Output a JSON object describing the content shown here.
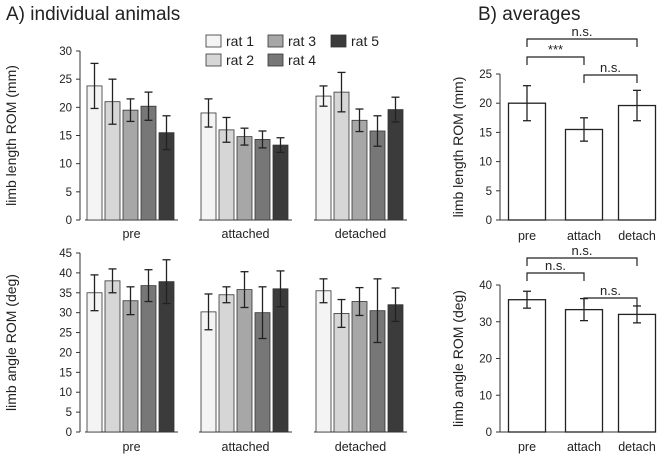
{
  "panels": {
    "left_title": "A)  individual animals",
    "right_title": "B)  averages"
  },
  "legend": {
    "items": [
      {
        "label": "rat 1",
        "color": "#f4f4f4"
      },
      {
        "label": "rat 2",
        "color": "#d6d6d6"
      },
      {
        "label": "rat 3",
        "color": "#a7a7a7"
      },
      {
        "label": "rat 4",
        "color": "#777777"
      },
      {
        "label": "rat 5",
        "color": "#3b3b3b"
      }
    ]
  },
  "chart_data": [
    {
      "id": "A-length",
      "type": "bar",
      "title": "",
      "ylabel": "limb length ROM (mm)",
      "ylim": [
        0,
        30
      ],
      "yticks": [
        0,
        5,
        10,
        15,
        20,
        25,
        30
      ],
      "categories": [
        "pre",
        "attached",
        "detached"
      ],
      "series": [
        {
          "name": "rat 1",
          "values": [
            23.8,
            19.0,
            22.0
          ],
          "errors": [
            4.0,
            2.5,
            1.8
          ]
        },
        {
          "name": "rat 2",
          "values": [
            21.0,
            16.0,
            22.7
          ],
          "errors": [
            4.0,
            2.2,
            3.5
          ]
        },
        {
          "name": "rat 3",
          "values": [
            19.5,
            14.8,
            17.7
          ],
          "errors": [
            2.0,
            1.5,
            2.0
          ]
        },
        {
          "name": "rat 4",
          "values": [
            20.2,
            14.3,
            15.8
          ],
          "errors": [
            2.5,
            1.5,
            2.7
          ]
        },
        {
          "name": "rat 5",
          "values": [
            15.5,
            13.3,
            19.6
          ],
          "errors": [
            3.0,
            1.3,
            2.2
          ]
        }
      ]
    },
    {
      "id": "A-angle",
      "type": "bar",
      "title": "",
      "ylabel": "limb angle ROM (deg)",
      "ylim": [
        0,
        45
      ],
      "yticks": [
        0,
        5,
        10,
        15,
        20,
        25,
        30,
        35,
        40,
        45
      ],
      "categories": [
        "pre",
        "attached",
        "detached"
      ],
      "series": [
        {
          "name": "rat 1",
          "values": [
            35.0,
            30.2,
            35.5
          ],
          "errors": [
            4.5,
            4.5,
            3.0
          ]
        },
        {
          "name": "rat 2",
          "values": [
            38.0,
            34.5,
            29.8
          ],
          "errors": [
            3.0,
            2.0,
            3.5
          ]
        },
        {
          "name": "rat 3",
          "values": [
            33.0,
            35.8,
            32.8
          ],
          "errors": [
            3.5,
            4.5,
            3.5
          ]
        },
        {
          "name": "rat 4",
          "values": [
            36.8,
            30.0,
            30.5
          ],
          "errors": [
            4.0,
            6.5,
            8.0
          ]
        },
        {
          "name": "rat 5",
          "values": [
            37.8,
            36.0,
            32.0
          ],
          "errors": [
            5.5,
            4.5,
            4.2
          ]
        }
      ]
    },
    {
      "id": "B-length",
      "type": "bar",
      "title": "",
      "ylabel": "limb length ROM (mm)",
      "ylim": [
        0,
        25
      ],
      "yticks": [
        0,
        5,
        10,
        15,
        20,
        25
      ],
      "categories": [
        "pre",
        "attach",
        "detach"
      ],
      "series": [
        {
          "name": "average",
          "values": [
            20.0,
            15.5,
            19.6
          ],
          "errors": [
            3.0,
            2.0,
            2.6
          ]
        }
      ],
      "comparisons": [
        {
          "from": "pre",
          "to": "detach",
          "label": "n.s.",
          "level": 2
        },
        {
          "from": "pre",
          "to": "attach",
          "label": "***",
          "level": 1
        },
        {
          "from": "attach",
          "to": "detach",
          "label": "n.s.",
          "level": 0
        }
      ]
    },
    {
      "id": "B-angle",
      "type": "bar",
      "title": "",
      "ylabel": "limb angle ROM (deg)",
      "ylim": [
        0,
        40
      ],
      "yticks": [
        0,
        10,
        20,
        30,
        40
      ],
      "categories": [
        "pre",
        "attach",
        "detach"
      ],
      "series": [
        {
          "name": "average",
          "values": [
            36.0,
            33.3,
            32.0
          ],
          "errors": [
            2.3,
            3.0,
            2.3
          ]
        }
      ],
      "comparisons": [
        {
          "from": "pre",
          "to": "detach",
          "label": "n.s.",
          "level": 2
        },
        {
          "from": "pre",
          "to": "attach",
          "label": "n.s.",
          "level": 1
        },
        {
          "from": "attach",
          "to": "detach",
          "label": "n.s.",
          "level": 0
        }
      ]
    }
  ]
}
